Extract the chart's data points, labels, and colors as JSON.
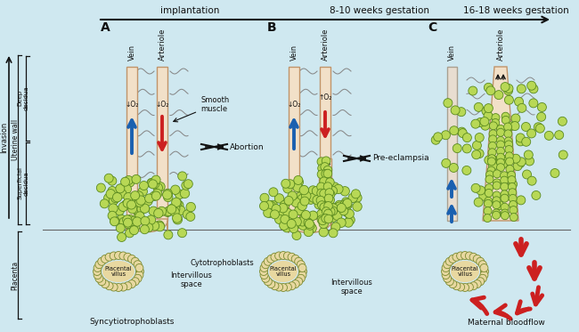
{
  "bg": "#cfe8f0",
  "vc": "#f2e0c8",
  "vb": "#c0946a",
  "cc": "#b8d855",
  "cb": "#5a8a20",
  "cc2": "#e8d8a0",
  "cb2": "#7a8a30",
  "blue": "#1a60b0",
  "red": "#cc2020",
  "blk": "#111111",
  "gy": "#888888",
  "timeline_text": "implantation",
  "title_B": "8-10 weeks gestation",
  "title_C": "16-18 weeks gestation",
  "sync_label": "Syncytiotrophoblasts",
  "cyto_label": "Cytotrophoblasts",
  "interv1": "Intervillous\nspace",
  "interv2": "Intervillous\nspace",
  "maternal_bf": "Maternal bloodflow",
  "smooth_muscle": "Smooth\nmuscle",
  "abortion": "Abortion",
  "pre_eclampsia": "Pre-eclampsia"
}
